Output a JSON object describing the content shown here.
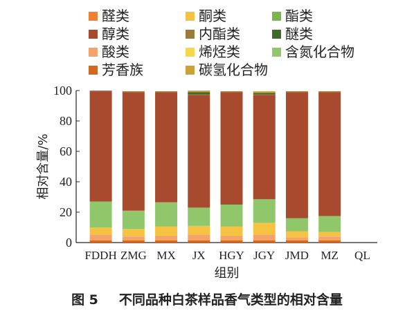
{
  "caption": {
    "figure_label": "图 5",
    "text": "不同品种白茶样品香气类型的相对含量"
  },
  "chart_data": {
    "type": "bar",
    "stacked": true,
    "xlabel": "组别",
    "ylabel": "相对含量/%",
    "ylim": [
      0,
      100
    ],
    "yticks": [
      0,
      20,
      40,
      60,
      80,
      100
    ],
    "categories": [
      "FDDH",
      "ZMG",
      "MX",
      "JX",
      "HGY",
      "JGY",
      "JMD",
      "MZ",
      "QL"
    ],
    "series": [
      {
        "name": "芳香族",
        "color": "#d2691e",
        "values": [
          1.5,
          1.5,
          1.5,
          1.5,
          1.5,
          1.5,
          1.5,
          1.5,
          0
        ]
      },
      {
        "name": "酸类",
        "color": "#f4a46a",
        "values": [
          3.5,
          2.5,
          3,
          3.5,
          3,
          3.5,
          2,
          2.5,
          0
        ]
      },
      {
        "name": "醛类",
        "color": "#f08030",
        "values": [
          0,
          0,
          0,
          0,
          0,
          0,
          0,
          0,
          0
        ]
      },
      {
        "name": "酮类",
        "color": "#f5c242",
        "values": [
          5,
          5,
          6,
          6,
          6,
          8,
          4,
          3,
          0
        ]
      },
      {
        "name": "烯烃类",
        "color": "#f7d64a",
        "values": [
          0,
          0,
          0,
          0,
          0,
          0,
          0,
          0,
          0
        ]
      },
      {
        "name": "酯类",
        "color": "#7ab648",
        "values": [
          0,
          0,
          0,
          0,
          0,
          0,
          0,
          0,
          0
        ]
      },
      {
        "name": "含氮化合物",
        "color": "#90c76a",
        "values": [
          17,
          12,
          16,
          12,
          14.5,
          15.5,
          8.5,
          10.5,
          0
        ]
      },
      {
        "name": "醇类",
        "color": "#a84a2e",
        "values": [
          72.5,
          78,
          72.5,
          74,
          74,
          68.5,
          83,
          81.5,
          0
        ]
      },
      {
        "name": "内酯类",
        "color": "#9b7a3a",
        "values": [
          0.5,
          0.5,
          0.5,
          0.5,
          0.5,
          0.5,
          0.5,
          0.5,
          0
        ]
      },
      {
        "name": "醚类",
        "color": "#3e6b2a",
        "values": [
          0,
          0,
          0,
          1.5,
          0,
          1,
          0,
          0,
          0
        ]
      },
      {
        "name": "碳氢化合物",
        "color": "#c9a23a",
        "values": [
          0,
          0,
          0,
          1,
          0,
          1,
          0,
          0,
          0
        ]
      }
    ],
    "legend": {
      "position": "top",
      "entries": [
        {
          "label": "醛类",
          "color": "#f08030"
        },
        {
          "label": "酮类",
          "color": "#f5c242"
        },
        {
          "label": "酯类",
          "color": "#7ab648"
        },
        {
          "label": "醇类",
          "color": "#a84a2e"
        },
        {
          "label": "内酯类",
          "color": "#9b7a3a"
        },
        {
          "label": "醚类",
          "color": "#3e6b2a"
        },
        {
          "label": "酸类",
          "color": "#f4a46a"
        },
        {
          "label": "烯烃类",
          "color": "#f7d64a"
        },
        {
          "label": "含氮化合物",
          "color": "#90c76a"
        },
        {
          "label": "芳香族",
          "color": "#d2691e"
        },
        {
          "label": "碳氢化合物",
          "color": "#c9a23a"
        }
      ]
    },
    "grid": false
  }
}
